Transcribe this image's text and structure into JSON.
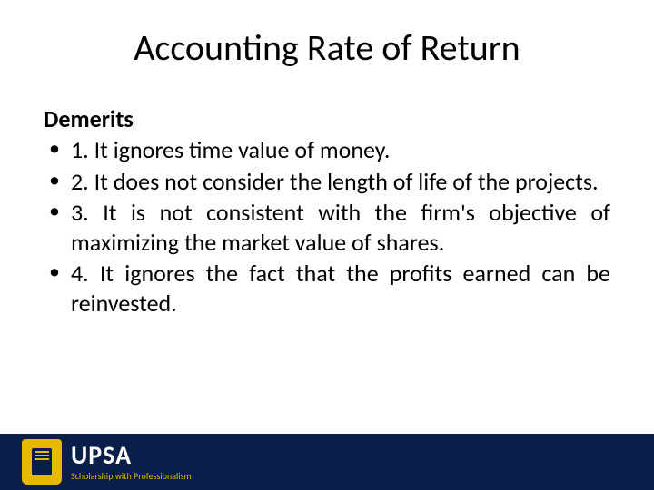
{
  "slide": {
    "title": "Accounting Rate of Return",
    "subheading": "Demerits",
    "bullets": [
      "1. It ignores time value of money.",
      "2. It does not consider the length of life of the projects.",
      "3. It is not consistent with the firm's objective of maximizing the market value of shares.",
      "4. It ignores the fact that the profits earned can be reinvested."
    ]
  },
  "footer": {
    "brand": "UPSA",
    "tagline": "Scholarship with Professionalism"
  },
  "styling": {
    "background_color": "#ffffff",
    "title_fontsize": 40,
    "title_color": "#000000",
    "body_fontsize": 26,
    "body_color": "#000000",
    "footer_bg": "#0a1e4a",
    "footer_accent": "#e6b800",
    "footer_brand_fontsize": 28,
    "footer_tagline_fontsize": 10,
    "font_family": "Calibri",
    "text_align_body": "justify",
    "slide_width": 720,
    "slide_height": 540
  }
}
